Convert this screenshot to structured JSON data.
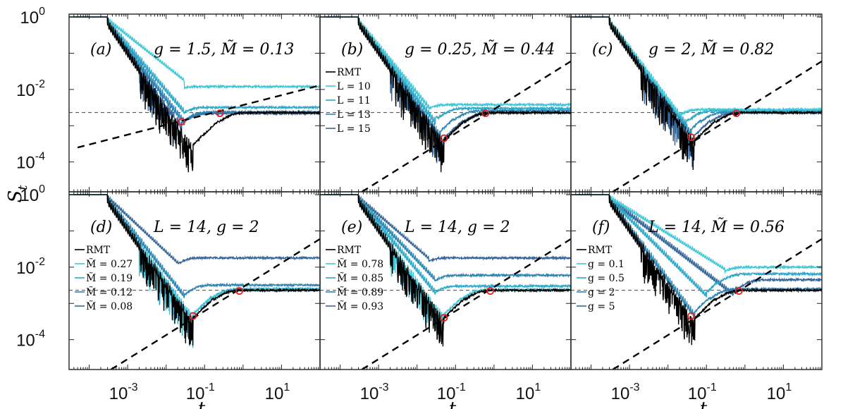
{
  "chart_data": {
    "type": "line",
    "scale": "log-log",
    "xlabel": "t",
    "ylabel": "S_t",
    "xlim": [
      3e-05,
      100
    ],
    "ylim": [
      1.5e-05,
      1.2
    ],
    "x_ticks": [
      0.001,
      0.1,
      10
    ],
    "x_tick_labels": [
      "10",
      "10",
      "10"
    ],
    "x_tick_exponents": [
      "-3",
      "-1",
      "1"
    ],
    "y_ticks": [
      1,
      0.01,
      0.0001
    ],
    "y_tick_labels": [
      "10",
      "10",
      "10"
    ],
    "y_tick_exponents": [
      "0",
      "-2",
      "-4"
    ],
    "reference_line_y": 0.0023,
    "panels": [
      {
        "letter": "(a)",
        "title": "g = 1.5, M̃ = 0.13",
        "legend": [],
        "guide_line": {
          "x": [
            5e-05,
            100
          ],
          "y": [
            0.00025,
            0.013
          ]
        },
        "markers": [
          {
            "x": 0.025,
            "y": 0.0013
          },
          {
            "x": 0.25,
            "y": 0.0022
          }
        ],
        "series": [
          {
            "name": "RMT",
            "color": "#000000",
            "dip": 0.0003,
            "dip_t": 0.05,
            "plateau": 0.0023,
            "early_plateau": 0.0023,
            "osc": 1.0
          },
          {
            "name": "L = 10",
            "color": "#40c8d8",
            "dip": 0.02,
            "dip_t": 0.03,
            "plateau": 0.012,
            "early_plateau": 0.012,
            "osc": 0.3
          },
          {
            "name": "L = 11",
            "color": "#2fa9c9",
            "dip": 0.003,
            "dip_t": 0.03,
            "plateau": 0.0032,
            "early_plateau": 0.0032,
            "osc": 0.6
          },
          {
            "name": "L = 13",
            "color": "#2d86b3",
            "dip": 0.0016,
            "dip_t": 0.03,
            "plateau": 0.0024,
            "early_plateau": 0.0024,
            "osc": 0.8
          },
          {
            "name": "L = 15",
            "color": "#35679a",
            "dip": 0.0013,
            "dip_t": 0.025,
            "plateau": 0.0022,
            "early_plateau": 0.0022,
            "osc": 0.9
          }
        ]
      },
      {
        "letter": "(b)",
        "title": "g = 0.25, M̃ = 0.44",
        "legend": [
          "RMT",
          "L = 10",
          "L = 11",
          "L = 13",
          "L = 15"
        ],
        "guide_line": {
          "x": [
            0.0002,
            100
          ],
          "y": [
            1e-05,
            0.06
          ]
        },
        "markers": [
          {
            "x": 0.05,
            "y": 0.00045
          },
          {
            "x": 0.6,
            "y": 0.0022
          }
        ],
        "series": [
          {
            "name": "RMT",
            "color": "#000000",
            "dip": 0.0004,
            "dip_t": 0.05,
            "plateau": 0.0023,
            "early_plateau": 0.0023,
            "osc": 1.0
          },
          {
            "name": "L = 10",
            "color": "#40c8d8",
            "dip": 0.004,
            "dip_t": 0.02,
            "plateau": 0.0038,
            "early_plateau": 0.0038,
            "osc": 0.5
          },
          {
            "name": "L = 11",
            "color": "#2fa9c9",
            "dip": 0.0016,
            "dip_t": 0.03,
            "plateau": 0.003,
            "early_plateau": 0.003,
            "osc": 0.7
          },
          {
            "name": "L = 13",
            "color": "#2d86b3",
            "dip": 0.0007,
            "dip_t": 0.04,
            "plateau": 0.0026,
            "early_plateau": 0.0026,
            "osc": 0.8
          },
          {
            "name": "L = 15",
            "color": "#35679a",
            "dip": 0.00045,
            "dip_t": 0.05,
            "plateau": 0.0023,
            "early_plateau": 0.0023,
            "osc": 0.9
          }
        ]
      },
      {
        "letter": "(c)",
        "title": "g = 2, M̃ = 0.82",
        "legend": [],
        "guide_line": {
          "x": [
            0.0002,
            100
          ],
          "y": [
            1e-05,
            0.06
          ]
        },
        "markers": [
          {
            "x": 0.04,
            "y": 0.00048
          },
          {
            "x": 0.6,
            "y": 0.0022
          }
        ],
        "series": [
          {
            "name": "RMT",
            "color": "#000000",
            "dip": 0.0004,
            "dip_t": 0.05,
            "plateau": 0.0023,
            "early_plateau": 0.0023,
            "osc": 1.0
          },
          {
            "name": "L = 10",
            "color": "#40c8d8",
            "dip": 0.0025,
            "dip_t": 0.02,
            "plateau": 0.0028,
            "early_plateau": 0.0028,
            "osc": 0.6
          },
          {
            "name": "L = 11",
            "color": "#2fa9c9",
            "dip": 0.0014,
            "dip_t": 0.03,
            "plateau": 0.0026,
            "early_plateau": 0.0026,
            "osc": 0.7
          },
          {
            "name": "L = 13",
            "color": "#2d86b3",
            "dip": 0.0008,
            "dip_t": 0.04,
            "plateau": 0.0024,
            "early_plateau": 0.0024,
            "osc": 0.8
          },
          {
            "name": "L = 15",
            "color": "#35679a",
            "dip": 0.0005,
            "dip_t": 0.045,
            "plateau": 0.0023,
            "early_plateau": 0.0023,
            "osc": 0.9
          }
        ]
      },
      {
        "letter": "(d)",
        "title": "L = 14, g = 2",
        "legend": [
          "RMT",
          "M̃ = 0.27",
          "M̃ = 0.19",
          "M̃ = 0.12",
          "M̃ = 0.08"
        ],
        "guide_line": {
          "x": [
            0.0002,
            100
          ],
          "y": [
            1e-05,
            0.06
          ]
        },
        "markers": [
          {
            "x": 0.05,
            "y": 0.00045
          },
          {
            "x": 0.8,
            "y": 0.0022
          }
        ],
        "series": [
          {
            "name": "RMT",
            "color": "#000000",
            "dip": 0.0004,
            "dip_t": 0.05,
            "plateau": 0.0023,
            "early_plateau": 0.0023,
            "osc": 1.0
          },
          {
            "name": "M̃ = 0.27",
            "color": "#40c8d8",
            "dip": 0.0005,
            "dip_t": 0.05,
            "plateau": 0.0024,
            "early_plateau": 0.0024,
            "osc": 0.9
          },
          {
            "name": "M̃ = 0.19",
            "color": "#2fa9c9",
            "dip": 0.0005,
            "dip_t": 0.05,
            "plateau": 0.0025,
            "early_plateau": 0.0025,
            "osc": 0.9
          },
          {
            "name": "M̃ = 0.12",
            "color": "#2d86b3",
            "dip": 0.002,
            "dip_t": 0.03,
            "plateau": 0.0032,
            "early_plateau": 0.0032,
            "osc": 0.6
          },
          {
            "name": "M̃ = 0.08",
            "color": "#35679a",
            "dip": 0.015,
            "dip_t": 0.02,
            "plateau": 0.018,
            "early_plateau": 0.018,
            "osc": 0.3
          }
        ]
      },
      {
        "letter": "(e)",
        "title": "L = 14, g = 2",
        "legend": [
          "RMT",
          "M̃ = 0.78",
          "M̃ = 0.85",
          "M̃ = 0.89",
          "M̃ = 0.93"
        ],
        "guide_line": {
          "x": [
            0.0002,
            100
          ],
          "y": [
            1e-05,
            0.06
          ]
        },
        "markers": [
          {
            "x": 0.05,
            "y": 0.0004
          },
          {
            "x": 0.8,
            "y": 0.0022
          }
        ],
        "series": [
          {
            "name": "RMT",
            "color": "#000000",
            "dip": 0.0004,
            "dip_t": 0.05,
            "plateau": 0.0023,
            "early_plateau": 0.0023,
            "osc": 1.0
          },
          {
            "name": "M̃ = 0.78",
            "color": "#40c8d8",
            "dip": 0.0005,
            "dip_t": 0.05,
            "plateau": 0.0024,
            "early_plateau": 0.0024,
            "osc": 0.9
          },
          {
            "name": "M̃ = 0.85",
            "color": "#2fa9c9",
            "dip": 0.0025,
            "dip_t": 0.03,
            "plateau": 0.003,
            "early_plateau": 0.003,
            "osc": 0.6
          },
          {
            "name": "M̃ = 0.89",
            "color": "#2d86b3",
            "dip": 0.0055,
            "dip_t": 0.03,
            "plateau": 0.006,
            "early_plateau": 0.006,
            "osc": 0.5
          },
          {
            "name": "M̃ = 0.93",
            "color": "#35679a",
            "dip": 0.02,
            "dip_t": 0.02,
            "plateau": 0.018,
            "early_plateau": 0.018,
            "osc": 0.3
          }
        ]
      },
      {
        "letter": "(f)",
        "title": "L = 14, M̃ = 0.56",
        "legend": [
          "RMT",
          "g = 0.1",
          "g = 0.5",
          "g = 2",
          "g = 5"
        ],
        "guide_line": {
          "x": [
            0.0002,
            100
          ],
          "y": [
            1e-05,
            0.06
          ]
        },
        "markers": [
          {
            "x": 0.04,
            "y": 0.00045
          },
          {
            "x": 0.7,
            "y": 0.0022
          }
        ],
        "series": [
          {
            "name": "RMT",
            "color": "#000000",
            "dip": 0.0004,
            "dip_t": 0.05,
            "plateau": 0.0023,
            "early_plateau": 0.0023,
            "osc": 1.0
          },
          {
            "name": "g = 0.1",
            "color": "#40c8d8",
            "dip": 0.01,
            "dip_t": 0.3,
            "plateau": 0.01,
            "early_plateau": 0.01,
            "osc": 0.3
          },
          {
            "name": "g = 0.5",
            "color": "#2fa9c9",
            "dip": 0.002,
            "dip_t": 0.1,
            "plateau": 0.0065,
            "early_plateau": 0.0065,
            "osc": 0.5
          },
          {
            "name": "g = 2",
            "color": "#2d86b3",
            "dip": 0.0006,
            "dip_t": 0.05,
            "plateau": 0.0025,
            "early_plateau": 0.0025,
            "osc": 0.8
          },
          {
            "name": "g = 5",
            "color": "#35679a",
            "dip": 0.0022,
            "dip_t": 0.5,
            "plateau": 0.0045,
            "early_plateau": 0.0045,
            "osc": 0.5
          }
        ]
      }
    ]
  }
}
